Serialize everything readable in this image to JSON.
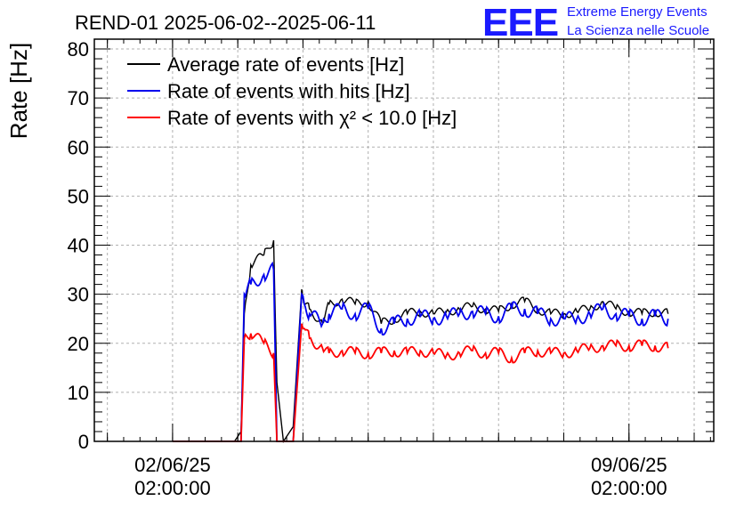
{
  "header": {
    "title": "REND-01 2025-06-02--2025-06-11",
    "logo_mark": "EEE",
    "logo_line1": "Extreme Energy Events",
    "logo_line2": "La Scienza nelle Scuole"
  },
  "chart_data": {
    "type": "line",
    "title": "REND-01 2025-06-02--2025-06-11",
    "xlabel": "",
    "ylabel": "Rate [Hz]",
    "x_unit": "days since 02/06/25 02:00:00",
    "xlim": [
      -1.2,
      8.3
    ],
    "ylim": [
      0,
      82
    ],
    "yticks": [
      0,
      10,
      20,
      30,
      40,
      50,
      60,
      70,
      80
    ],
    "ytick_labels": [
      "0",
      "10",
      "20",
      "30",
      "40",
      "50",
      "60",
      "70",
      "80"
    ],
    "xticks": [
      {
        "x": 0,
        "date": "02/06/25",
        "time": "02:00:00"
      },
      {
        "x": 7,
        "date": "09/06/25",
        "time": "02:00:00"
      }
    ],
    "grid": true,
    "legend_position": "top-left",
    "series": [
      {
        "name": "Average rate of events [Hz]",
        "color": "#000000",
        "x": [
          0.0,
          0.95,
          1.05,
          1.1,
          1.2,
          1.4,
          1.55,
          1.6,
          1.7,
          1.85,
          1.98,
          2.02,
          2.1,
          2.3,
          2.4,
          2.6,
          2.8,
          3.0,
          3.2,
          3.4,
          3.6,
          3.8,
          4.0,
          4.2,
          4.4,
          4.6,
          4.8,
          5.0,
          5.2,
          5.4,
          5.6,
          5.8,
          6.0,
          6.2,
          6.4,
          6.6,
          6.8,
          7.0,
          7.2,
          7.4,
          7.6
        ],
        "values": [
          0,
          0,
          2,
          26,
          36,
          38,
          41,
          12,
          0,
          3,
          31,
          28,
          27,
          24,
          28,
          29,
          28,
          28.5,
          24,
          25,
          26,
          26.5,
          26,
          26.5,
          27,
          27.5,
          27,
          26.5,
          28,
          28.5,
          27,
          26,
          26,
          26.5,
          27,
          28.5,
          27,
          26.5,
          26,
          26.5,
          26
        ]
      },
      {
        "name": "Rate of events with hits [Hz]",
        "color": "#0000ee",
        "x": [
          0.0,
          0.95,
          1.05,
          1.1,
          1.2,
          1.4,
          1.55,
          1.6,
          1.7,
          1.85,
          1.98,
          2.02,
          2.1,
          2.3,
          2.4,
          2.6,
          2.8,
          3.0,
          3.2,
          3.4,
          3.6,
          3.8,
          4.0,
          4.2,
          4.4,
          4.6,
          4.8,
          5.0,
          5.2,
          5.4,
          5.6,
          5.8,
          6.0,
          6.2,
          6.4,
          6.6,
          6.8,
          7.0,
          7.2,
          7.4,
          7.6
        ],
        "values": [
          0,
          0,
          0,
          30,
          32,
          34,
          35,
          0,
          0,
          0,
          30,
          28,
          26,
          24,
          26,
          27,
          26,
          27,
          23,
          24,
          25,
          25.5,
          25,
          25.5,
          26,
          26.5,
          26,
          25.5,
          27,
          27,
          26,
          25,
          25,
          25,
          26,
          27,
          26,
          25.5,
          25,
          25.5,
          25
        ]
      },
      {
        "name": "Rate of events with χ² < 10.0 [Hz]",
        "color": "#ff0000",
        "x": [
          0.0,
          0.95,
          1.05,
          1.1,
          1.2,
          1.4,
          1.55,
          1.6,
          1.7,
          1.85,
          1.98,
          2.02,
          2.1,
          2.3,
          2.4,
          2.6,
          2.8,
          3.0,
          3.2,
          3.4,
          3.6,
          3.8,
          4.0,
          4.2,
          4.4,
          4.6,
          4.8,
          5.0,
          5.2,
          5.4,
          5.6,
          5.8,
          6.0,
          6.2,
          6.4,
          6.6,
          6.8,
          7.0,
          7.2,
          7.4,
          7.6
        ],
        "values": [
          0,
          0,
          0,
          21,
          22,
          20,
          18,
          0,
          0,
          0,
          24,
          23,
          21,
          19,
          18,
          18.5,
          18,
          18,
          18,
          18.5,
          18,
          18.5,
          18,
          17.5,
          18,
          18.5,
          18,
          18,
          17,
          18,
          18.5,
          18,
          18,
          18.5,
          19,
          19.5,
          19.5,
          19.5,
          19.5,
          19.5,
          19
        ]
      }
    ]
  }
}
